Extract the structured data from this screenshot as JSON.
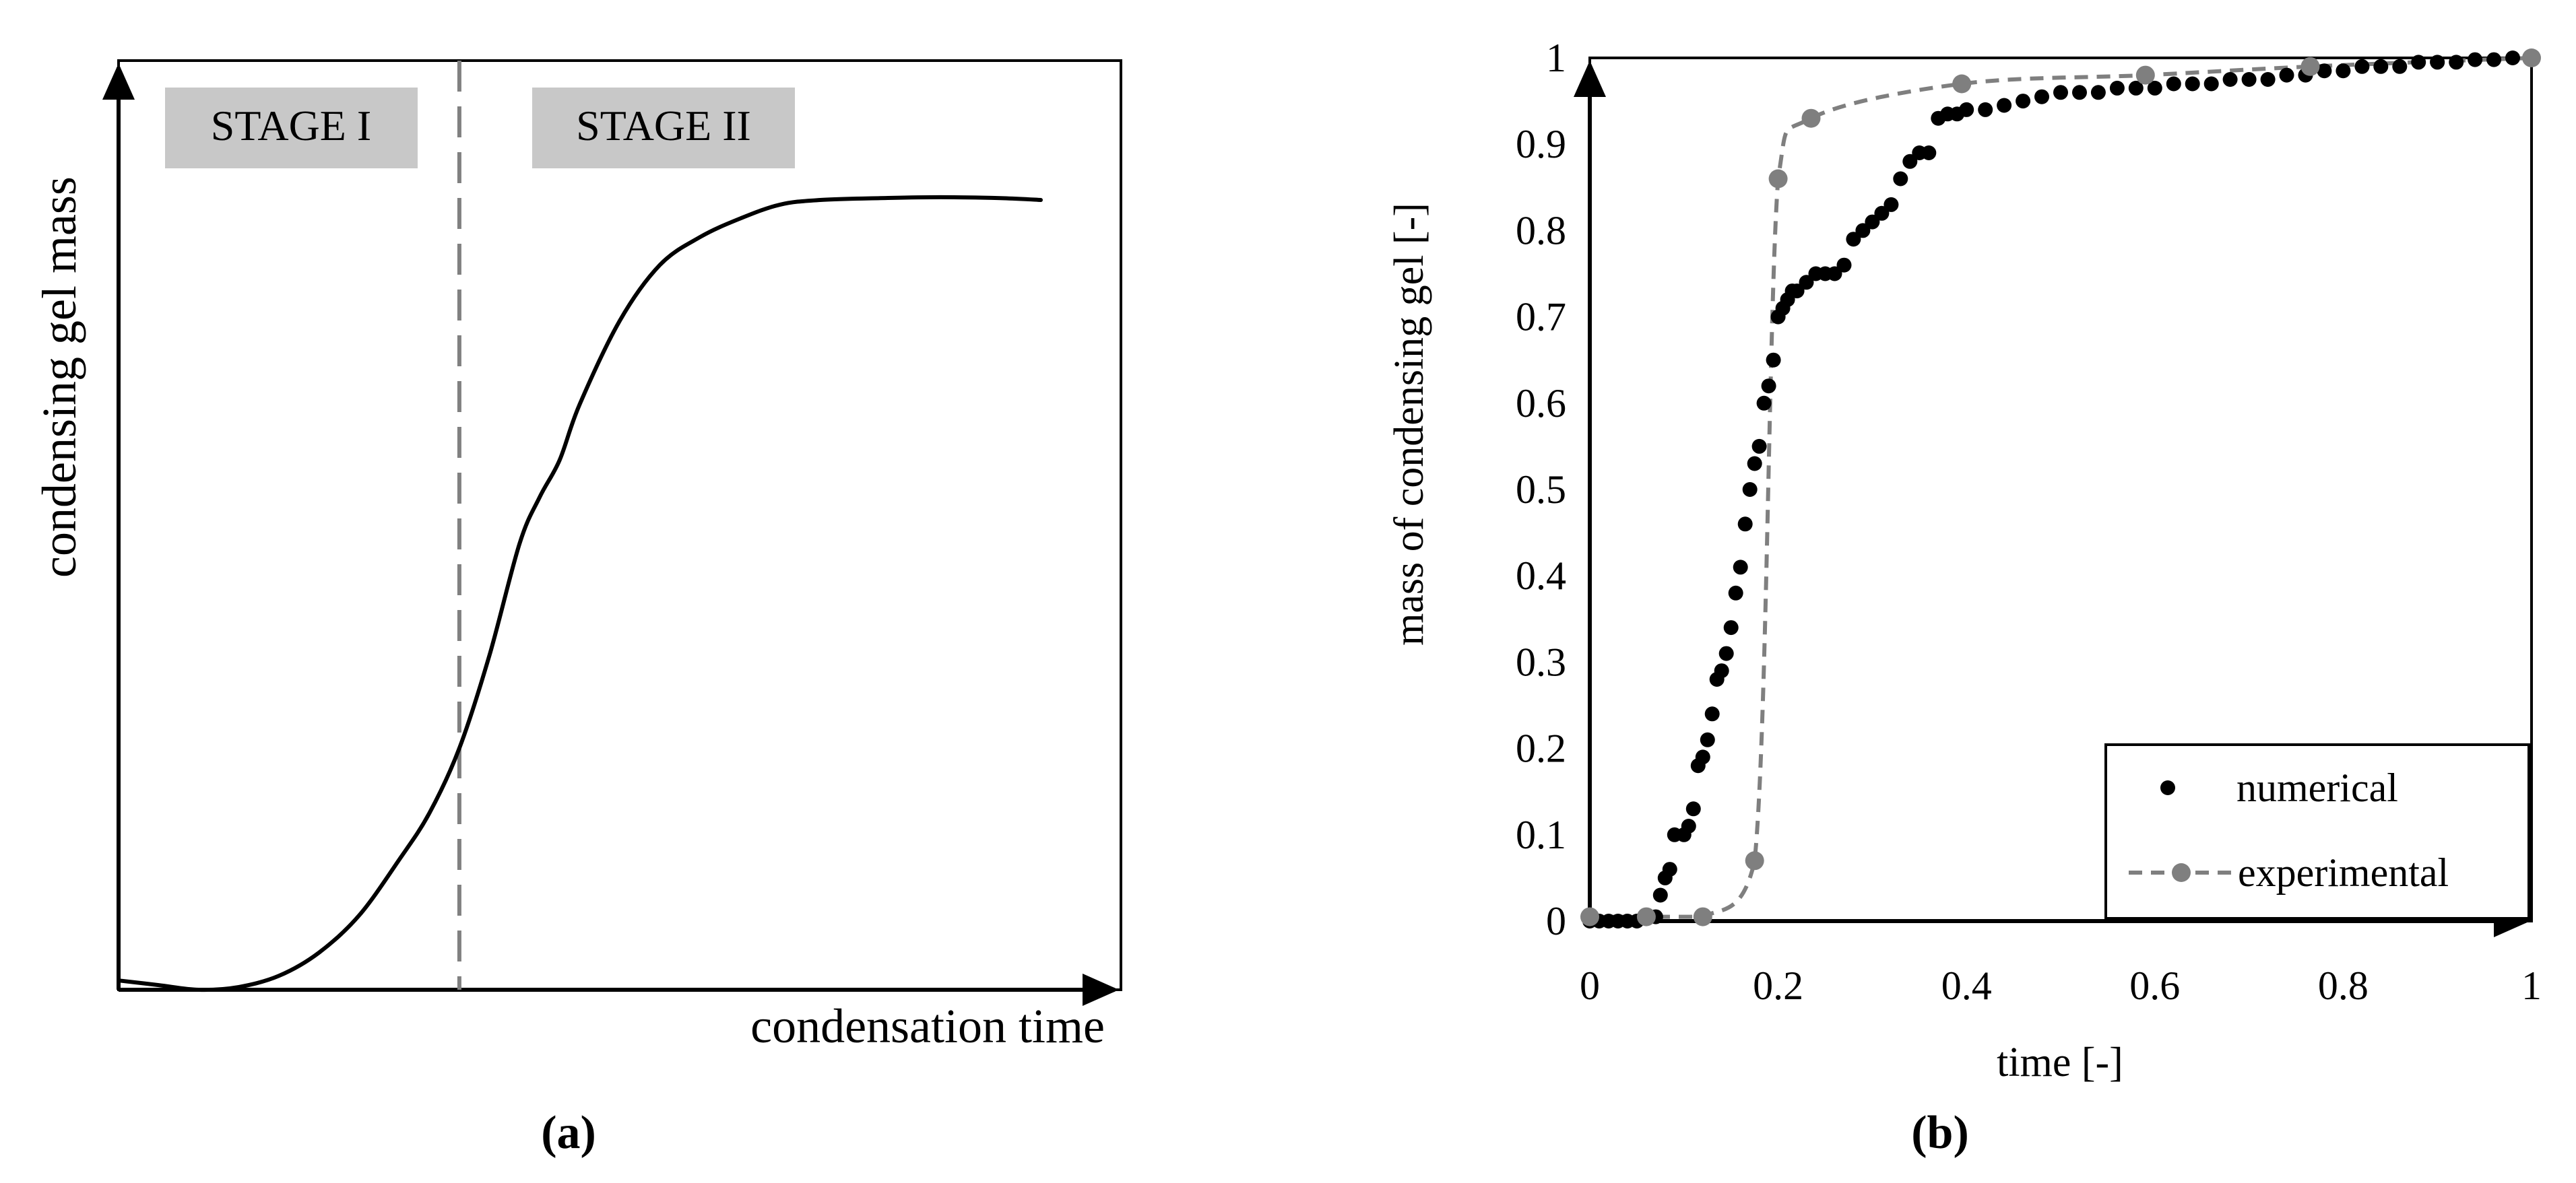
{
  "panel_labels": [
    "(a)",
    "(b)"
  ],
  "chart_data": [
    {
      "type": "line",
      "title": "",
      "xlabel": "condensation time",
      "ylabel": "condensing gel mass",
      "xlim": [
        0,
        1
      ],
      "ylim": [
        0,
        1
      ],
      "stage_labels": [
        "STAGE I",
        "STAGE II"
      ],
      "stage_boundary_x": 0.34,
      "series": [
        {
          "name": "condensing gel mass",
          "x": [
            0.0,
            0.04,
            0.08,
            0.12,
            0.16,
            0.2,
            0.24,
            0.28,
            0.31,
            0.34,
            0.37,
            0.4,
            0.42,
            0.44,
            0.46,
            0.5,
            0.54,
            0.58,
            0.62,
            0.66,
            0.7,
            0.76,
            0.82,
            0.88,
            0.92
          ],
          "values": [
            0.01,
            0.005,
            0.0,
            0.003,
            0.015,
            0.04,
            0.08,
            0.14,
            0.19,
            0.26,
            0.36,
            0.48,
            0.53,
            0.57,
            0.63,
            0.72,
            0.78,
            0.81,
            0.83,
            0.845,
            0.85,
            0.852,
            0.853,
            0.852,
            0.85
          ]
        }
      ]
    },
    {
      "type": "scatter",
      "title": "",
      "xlabel": "time [-]",
      "ylabel": "mass of condensing gel [-]",
      "xlim": [
        0,
        1
      ],
      "ylim": [
        0,
        1
      ],
      "x_ticks": [
        "0",
        "0.2",
        "0.4",
        "0.6",
        "0.8",
        "1"
      ],
      "y_ticks": [
        "0",
        "0.1",
        "0.2",
        "0.3",
        "0.4",
        "0.5",
        "0.6",
        "0.7",
        "0.8",
        "0.9",
        "1"
      ],
      "legend_position": "bottom-right",
      "series": [
        {
          "name": "numerical",
          "style": "points",
          "color": "#000000",
          "x": [
            0.0,
            0.01,
            0.02,
            0.03,
            0.04,
            0.05,
            0.06,
            0.07,
            0.075,
            0.08,
            0.085,
            0.09,
            0.1,
            0.105,
            0.11,
            0.115,
            0.12,
            0.125,
            0.13,
            0.135,
            0.14,
            0.145,
            0.15,
            0.155,
            0.16,
            0.165,
            0.17,
            0.175,
            0.18,
            0.185,
            0.19,
            0.195,
            0.2,
            0.205,
            0.21,
            0.215,
            0.22,
            0.23,
            0.24,
            0.25,
            0.26,
            0.27,
            0.28,
            0.29,
            0.3,
            0.31,
            0.32,
            0.33,
            0.34,
            0.35,
            0.36,
            0.37,
            0.38,
            0.39,
            0.4,
            0.42,
            0.44,
            0.46,
            0.48,
            0.5,
            0.52,
            0.54,
            0.56,
            0.58,
            0.6,
            0.62,
            0.64,
            0.66,
            0.68,
            0.7,
            0.72,
            0.74,
            0.76,
            0.78,
            0.8,
            0.82,
            0.84,
            0.86,
            0.88,
            0.9,
            0.92,
            0.94,
            0.96,
            0.98,
            1.0
          ],
          "values": [
            0.0,
            0.0,
            0.0,
            0.0,
            0.0,
            0.0,
            0.005,
            0.005,
            0.03,
            0.05,
            0.06,
            0.1,
            0.1,
            0.11,
            0.13,
            0.18,
            0.19,
            0.21,
            0.24,
            0.28,
            0.29,
            0.31,
            0.34,
            0.38,
            0.41,
            0.46,
            0.5,
            0.53,
            0.55,
            0.6,
            0.62,
            0.65,
            0.7,
            0.71,
            0.72,
            0.73,
            0.73,
            0.74,
            0.75,
            0.75,
            0.75,
            0.76,
            0.79,
            0.8,
            0.81,
            0.82,
            0.83,
            0.86,
            0.88,
            0.89,
            0.89,
            0.93,
            0.935,
            0.935,
            0.94,
            0.94,
            0.945,
            0.95,
            0.955,
            0.96,
            0.96,
            0.96,
            0.965,
            0.965,
            0.965,
            0.97,
            0.97,
            0.97,
            0.975,
            0.975,
            0.975,
            0.98,
            0.98,
            0.985,
            0.985,
            0.99,
            0.99,
            0.99,
            0.995,
            0.995,
            0.995,
            0.998,
            0.998,
            1.0,
            1.0
          ]
        },
        {
          "name": "experimental",
          "style": "dashed-line-with-markers",
          "color": "#7f7f7f",
          "x": [
            0.0,
            0.06,
            0.12,
            0.175,
            0.2,
            0.235,
            0.395,
            0.59,
            0.765,
            1.0
          ],
          "values": [
            0.005,
            0.005,
            0.005,
            0.07,
            0.86,
            0.93,
            0.97,
            0.98,
            0.99,
            1.0
          ]
        }
      ]
    }
  ]
}
